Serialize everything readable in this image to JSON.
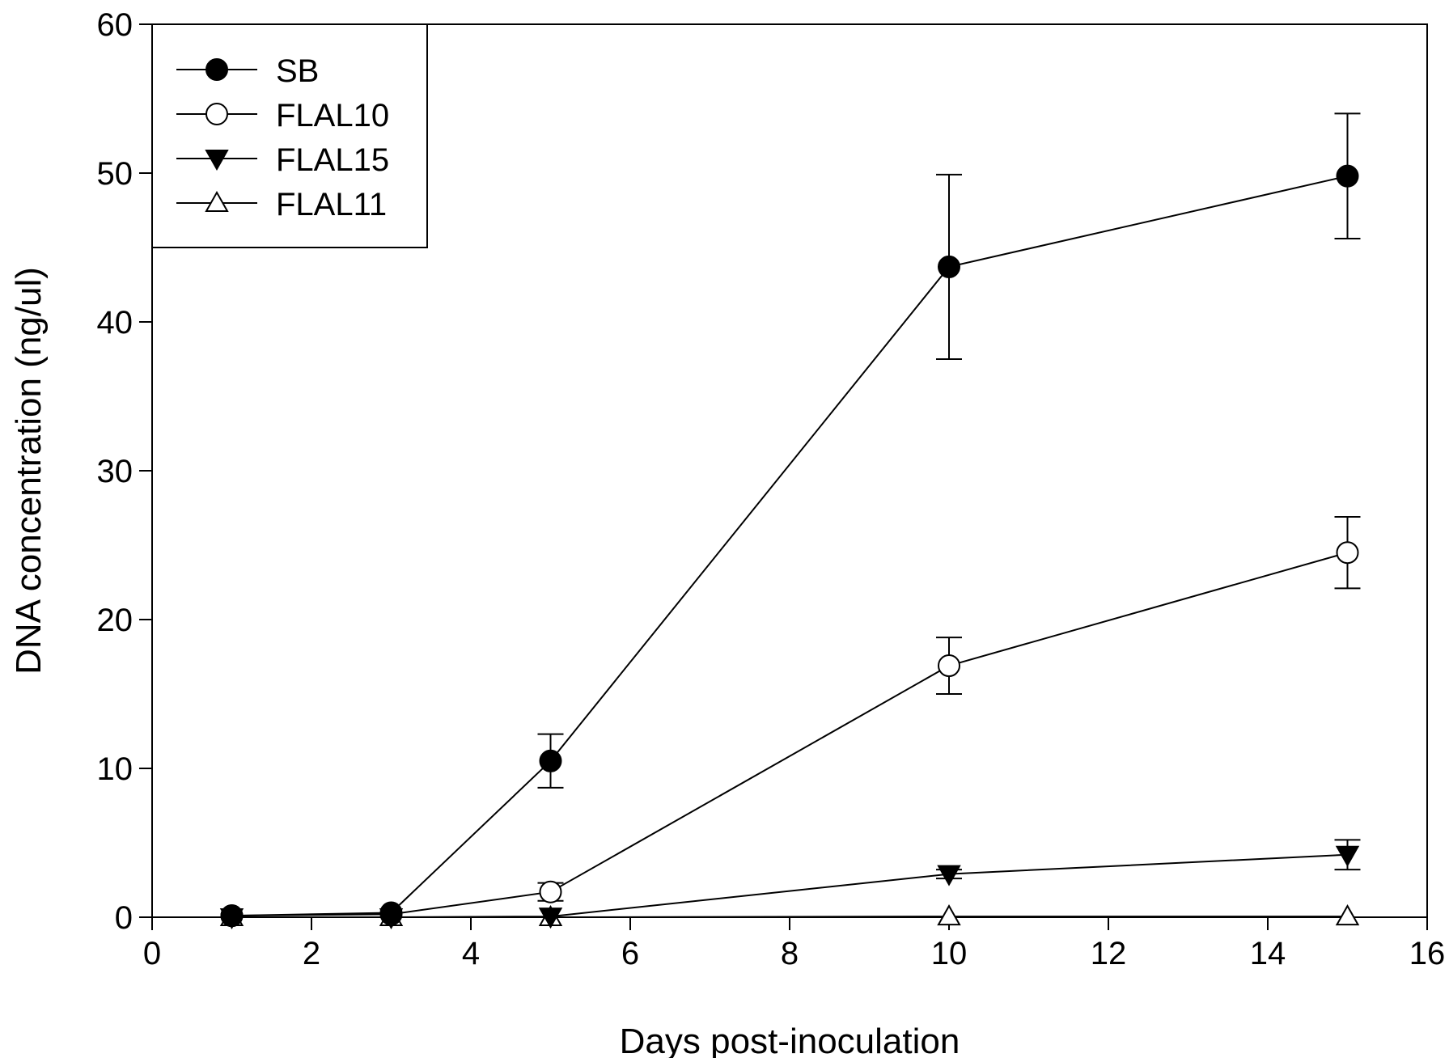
{
  "chart_data": {
    "type": "line",
    "title": "",
    "xlabel": "Days post-inoculation",
    "ylabel": "DNA concentration (ng/ul)",
    "xlim": [
      0,
      16
    ],
    "ylim": [
      0,
      60
    ],
    "xticks": [
      0,
      2,
      4,
      6,
      8,
      10,
      12,
      14,
      16
    ],
    "yticks": [
      0,
      10,
      20,
      30,
      40,
      50,
      60
    ],
    "grid": false,
    "legend_position": "top-left",
    "x": [
      1,
      3,
      5,
      10,
      15
    ],
    "series": [
      {
        "name": "SB",
        "marker": "filled-circle",
        "values": [
          0.1,
          0.3,
          10.5,
          43.7,
          49.8
        ],
        "err": [
          0,
          0,
          1.8,
          6.2,
          4.2
        ]
      },
      {
        "name": "FLAL10",
        "marker": "open-circle",
        "values": [
          0.1,
          0.2,
          1.7,
          16.9,
          24.5
        ],
        "err": [
          0,
          0,
          0.6,
          1.9,
          2.4
        ]
      },
      {
        "name": "FLAL15",
        "marker": "filled-triangle-down",
        "values": [
          0,
          0,
          0.05,
          2.9,
          4.2
        ],
        "err": [
          0,
          0,
          0,
          0.3,
          1.0
        ]
      },
      {
        "name": "FLAL11",
        "marker": "open-triangle-up",
        "values": [
          0,
          0,
          0,
          0.05,
          0.05
        ],
        "err": [
          0,
          0,
          0,
          0,
          0
        ]
      }
    ]
  }
}
